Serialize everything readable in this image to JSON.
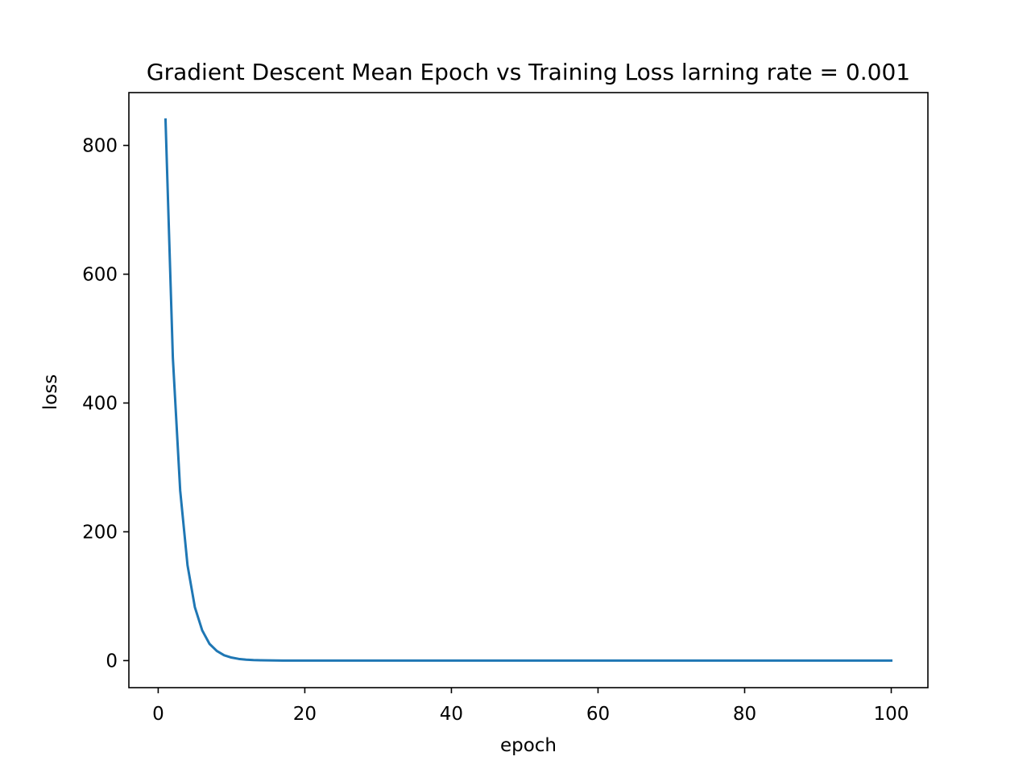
{
  "chart_data": {
    "type": "line",
    "title": "Gradient Descent Mean Epoch vs Training Loss larning rate = 0.001",
    "xlabel": "epoch",
    "ylabel": "loss",
    "xlim": [
      -4,
      105
    ],
    "ylim": [
      -42,
      882
    ],
    "xticks": [
      0,
      20,
      40,
      60,
      80,
      100
    ],
    "yticks": [
      0,
      200,
      400,
      600,
      800
    ],
    "xtick_labels": [
      "0",
      "20",
      "40",
      "60",
      "80",
      "100"
    ],
    "ytick_labels": [
      "0",
      "200",
      "400",
      "600",
      "800"
    ],
    "grid": false,
    "legend": false,
    "line_color": "#1f77b4",
    "series": [
      {
        "x": [
          1,
          2,
          3,
          4,
          5,
          6,
          7,
          8,
          9,
          10,
          11,
          12,
          13,
          14,
          15,
          16,
          17,
          18,
          19,
          20,
          25,
          30,
          40,
          50,
          60,
          70,
          80,
          90,
          100
        ],
        "values": [
          840,
          470,
          264,
          148,
          83,
          47,
          26,
          15,
          8.3,
          4.7,
          2.6,
          1.5,
          0.8,
          0.5,
          0.3,
          0.15,
          0.08,
          0.05,
          0.03,
          0.02,
          0.01,
          0.005,
          0,
          0,
          0,
          0,
          0,
          0,
          0
        ]
      }
    ]
  }
}
